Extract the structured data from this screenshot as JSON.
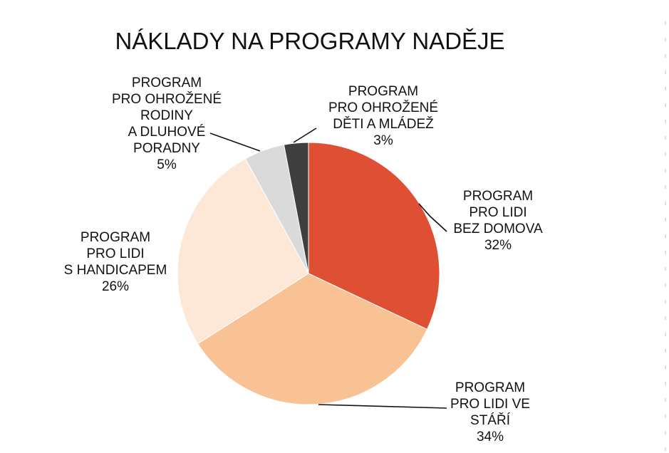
{
  "chart_data": {
    "type": "pie",
    "title": "NÁKLADY NA PROGRAMY NADĚJE",
    "slices": [
      {
        "lines": [
          "PROGRAM",
          "PRO LIDI",
          "BEZ DOMOVA"
        ],
        "percent_label": "32%",
        "value": 32,
        "color": "#de4f34"
      },
      {
        "lines": [
          "PROGRAM",
          "PRO LIDI VE",
          "STÁŘÍ"
        ],
        "percent_label": "34%",
        "value": 34,
        "color": "#f9c294"
      },
      {
        "lines": [
          "PROGRAM",
          "PRO LIDI",
          "S HANDICAPEM"
        ],
        "percent_label": "26%",
        "value": 26,
        "color": "#fde7d7"
      },
      {
        "lines": [
          "PROGRAM",
          "PRO OHROŽENÉ",
          "RODINY",
          "A DLUHOVÉ",
          "PORADNY"
        ],
        "percent_label": "5%",
        "value": 5,
        "color": "#dadada"
      },
      {
        "lines": [
          "PROGRAM",
          "PRO OHROŽENÉ",
          "DĚTI A MLÁDEŽ"
        ],
        "percent_label": "3%",
        "value": 3,
        "color": "#3f3f3f"
      }
    ]
  }
}
